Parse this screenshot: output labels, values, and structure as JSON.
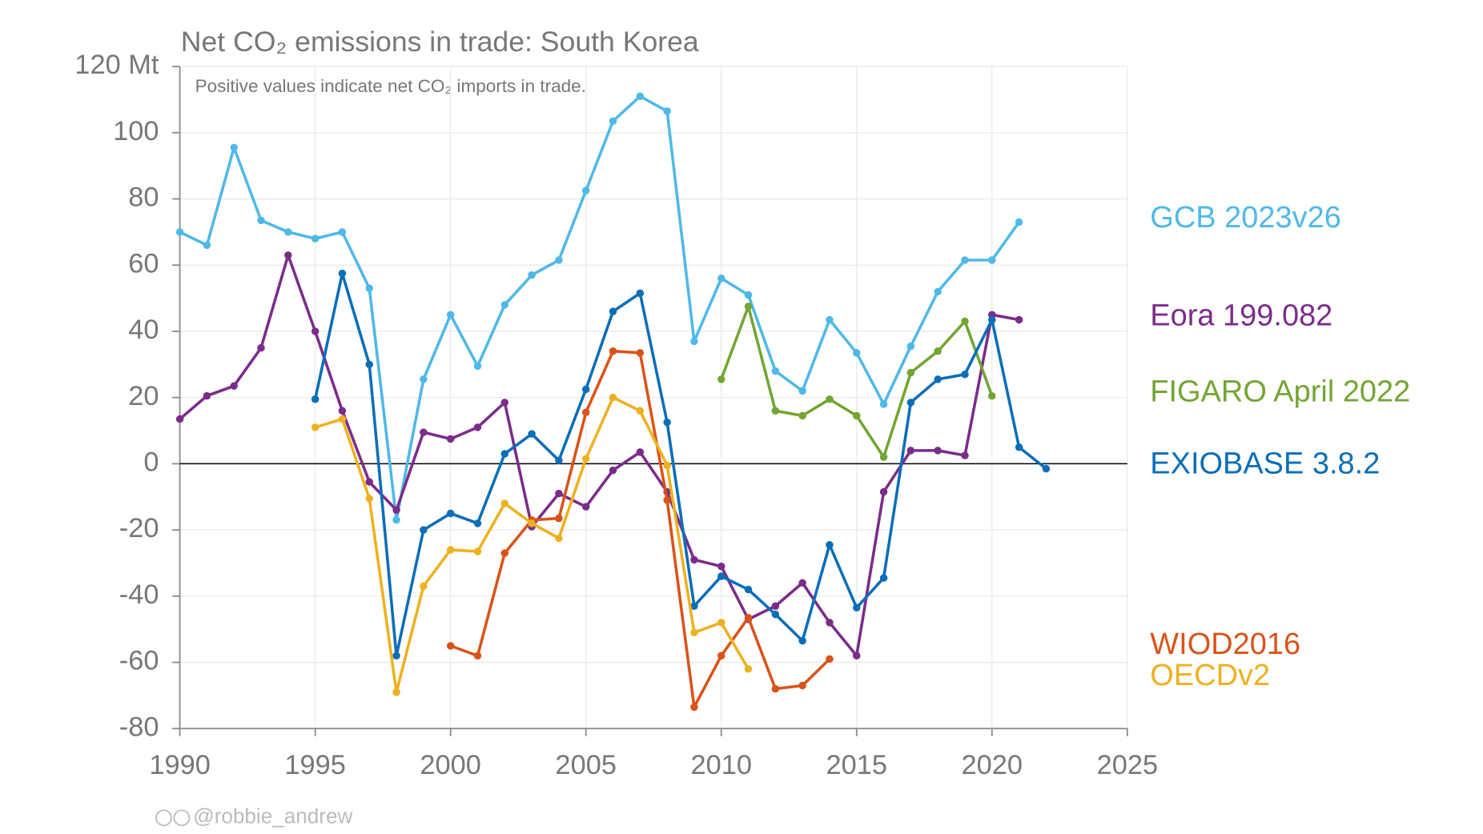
{
  "chart_data": {
    "type": "line",
    "title": "Net CO₂ emissions in trade: South Korea",
    "subtitle": "Positive values indicate net CO₂ imports in trade.",
    "credit": "@robbie_andrew",
    "x": [
      1990,
      1991,
      1992,
      1993,
      1994,
      1995,
      1996,
      1997,
      1998,
      1999,
      2000,
      2001,
      2002,
      2003,
      2004,
      2005,
      2006,
      2007,
      2008,
      2009,
      2010,
      2011,
      2012,
      2013,
      2014,
      2015,
      2016,
      2017,
      2018,
      2019,
      2020,
      2021,
      2022
    ],
    "xlim": [
      1990,
      2025
    ],
    "xticks": [
      1990,
      1995,
      2000,
      2005,
      2010,
      2015,
      2020,
      2025
    ],
    "ylim": [
      -80,
      120
    ],
    "yticks": [
      -80,
      -60,
      -40,
      -20,
      0,
      20,
      40,
      60,
      80,
      100,
      {
        "value": 120,
        "label": "120 Mt"
      }
    ],
    "grid": true,
    "series": [
      {
        "name": "GCB 2023v26",
        "color": "#4fb9e6",
        "values": [
          70,
          66,
          95.5,
          73.5,
          70,
          68,
          70,
          53,
          -17,
          25.5,
          45,
          29.5,
          48,
          57,
          61.5,
          82.5,
          103.5,
          111,
          106.5,
          37,
          56,
          51,
          28,
          22,
          43.5,
          33.5,
          18,
          35.5,
          52,
          61.5,
          61.5,
          73,
          null
        ]
      },
      {
        "name": "Eora 199.082",
        "color": "#7b2c8a",
        "values": [
          13.5,
          20.5,
          23.5,
          35,
          63,
          40,
          16,
          -5.5,
          -14,
          9.5,
          7.5,
          11,
          18.5,
          -19,
          -9,
          -13,
          -2,
          3.5,
          -8.5,
          -29,
          -31,
          -47,
          -43,
          -36,
          -48,
          -58,
          -8.5,
          4,
          4,
          2.5,
          45,
          43.5,
          null
        ]
      },
      {
        "name": "FIGARO April 2022",
        "color": "#73a533",
        "values": [
          null,
          null,
          null,
          null,
          null,
          null,
          null,
          null,
          null,
          null,
          null,
          null,
          null,
          null,
          null,
          null,
          null,
          null,
          null,
          null,
          25.5,
          47.5,
          16,
          14.5,
          19.5,
          14.5,
          2,
          27.5,
          34,
          43,
          20.5,
          null,
          null
        ]
      },
      {
        "name": "EXIOBASE 3.8.2",
        "color": "#0b6eb8",
        "values": [
          null,
          null,
          null,
          null,
          null,
          19.5,
          57.5,
          30,
          -58,
          -20,
          -15,
          -18,
          3,
          9,
          1,
          22.5,
          46,
          51.5,
          12.5,
          -43,
          -34,
          -38,
          -45.5,
          -53.5,
          -24.5,
          -43.5,
          -34.5,
          18.5,
          25.5,
          27,
          43.5,
          5,
          -1.5
        ]
      },
      {
        "name": "WIOD2016",
        "color": "#d95319",
        "values": [
          null,
          null,
          null,
          null,
          null,
          null,
          null,
          null,
          null,
          null,
          -55,
          -58,
          -27,
          -17,
          -16.5,
          15.5,
          34,
          33.5,
          -11,
          -73.5,
          -58,
          -46.5,
          -68,
          -67,
          -59,
          null,
          null,
          null,
          null,
          null,
          null,
          null,
          null
        ]
      },
      {
        "name": "OECDv2",
        "color": "#edb120",
        "values": [
          null,
          null,
          null,
          null,
          null,
          11,
          13.5,
          -10.5,
          -69,
          -37,
          -26,
          -26.5,
          -12,
          -18,
          -22.5,
          1.5,
          20,
          16,
          -0.5,
          -51,
          -48,
          -62,
          null,
          null,
          null,
          null,
          null,
          null,
          null,
          null,
          null,
          null,
          null
        ]
      }
    ]
  }
}
